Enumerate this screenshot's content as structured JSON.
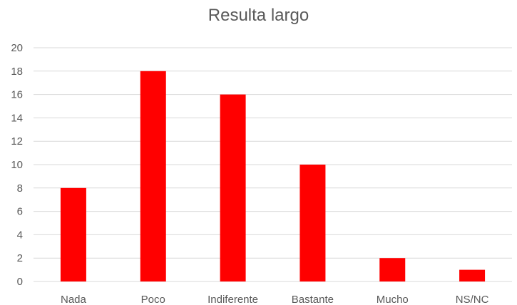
{
  "chart_data": {
    "type": "bar",
    "title": "Resulta largo",
    "xlabel": "",
    "ylabel": "",
    "categories": [
      "Nada",
      "Poco",
      "Indiferente",
      "Bastante",
      "Mucho",
      "NS/NC"
    ],
    "values": [
      8,
      18,
      16,
      10,
      2,
      1
    ],
    "ylim": [
      0,
      20
    ],
    "yticks": [
      "0",
      "2",
      "4",
      "6",
      "8",
      "10",
      "12",
      "14",
      "16",
      "18",
      "20"
    ],
    "grid": true,
    "legend": "none",
    "colors": {
      "bar": "#ff0000",
      "grid": "#d9d9d9",
      "text": "#595959"
    }
  }
}
